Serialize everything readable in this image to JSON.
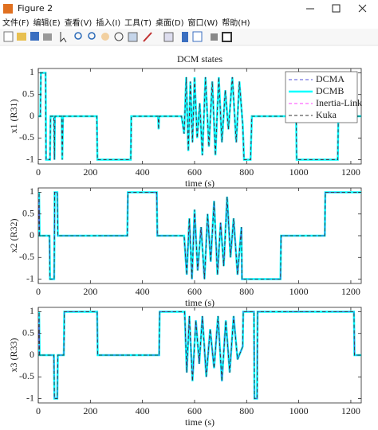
{
  "window": {
    "title": "Figure 2",
    "menu": [
      "文件(F)",
      "编辑(E)",
      "查看(V)",
      "插入(I)",
      "工具(T)",
      "桌面(D)",
      "窗口(W)",
      "帮助(H)"
    ]
  },
  "chart_data": [
    {
      "type": "line",
      "title": "DCM states",
      "xlabel": "time (s)",
      "ylabel": "x1 (R31)",
      "xlim": [
        0,
        1240
      ],
      "ylim": [
        -1.1,
        1.1
      ],
      "xticks": [
        0,
        200,
        400,
        600,
        800,
        1000,
        1200
      ],
      "yticks": [
        -1,
        -0.5,
        0,
        0.5,
        1
      ],
      "legend": "top-right",
      "x": [
        0,
        8,
        10,
        28,
        30,
        45,
        47,
        60,
        62,
        64,
        90,
        92,
        95,
        225,
        227,
        355,
        357,
        460,
        462,
        464,
        550,
        560,
        568,
        576,
        584,
        592,
        600,
        610,
        620,
        630,
        642,
        655,
        668,
        680,
        693,
        705,
        718,
        730,
        745,
        760,
        772,
        785,
        790,
        815,
        820,
        990,
        992,
        1150,
        1152,
        1240
      ],
      "series": [
        {
          "name": "DCMA",
          "color": "#5050d8",
          "values": [
            0,
            0,
            1,
            1,
            -1,
            -1,
            0,
            0,
            -1,
            0,
            0,
            -1,
            0,
            0,
            -1,
            -1,
            0,
            0,
            -0.3,
            0,
            0,
            -0.4,
            0.9,
            -0.8,
            0.8,
            -0.6,
            0.9,
            -0.5,
            0.3,
            -0.9,
            0.9,
            -0.7,
            0.8,
            -0.9,
            0.9,
            -0.6,
            0.6,
            -0.3,
            0.9,
            -0.6,
            0.8,
            -0.2,
            -1,
            -1,
            0,
            0,
            -1,
            -1,
            0,
            0
          ]
        },
        {
          "name": "DCMB",
          "color": "#00ffff",
          "values": [
            0,
            0,
            1,
            1,
            -1,
            -1,
            0,
            0,
            -1,
            0,
            0,
            -1,
            0,
            0,
            -1,
            -1,
            0,
            0,
            -0.3,
            0,
            0,
            -0.4,
            0.9,
            -0.8,
            0.8,
            -0.6,
            0.9,
            -0.5,
            0.3,
            -0.9,
            0.9,
            -0.7,
            0.8,
            -0.9,
            0.9,
            -0.6,
            0.6,
            -0.3,
            0.9,
            -0.6,
            0.8,
            -0.2,
            -1,
            -1,
            0,
            0,
            -1,
            -1,
            0,
            0
          ]
        },
        {
          "name": "Inertia-Link",
          "color": "#ff40ff",
          "values": [
            0,
            0,
            1,
            1,
            -1,
            -1,
            0,
            0,
            -1,
            0,
            0,
            -1,
            0,
            0,
            -1,
            -1,
            0,
            0,
            -0.3,
            0,
            0,
            -0.4,
            0.9,
            -0.8,
            0.8,
            -0.6,
            0.9,
            -0.5,
            0.3,
            -0.9,
            0.9,
            -0.7,
            0.8,
            -0.9,
            0.9,
            -0.6,
            0.6,
            -0.3,
            0.9,
            -0.6,
            0.8,
            -0.2,
            -1,
            -1,
            0,
            0,
            -1,
            -1,
            0,
            0
          ]
        },
        {
          "name": "Kuka",
          "color": "#333333",
          "values": [
            0,
            0,
            1,
            1,
            -1,
            -1,
            0,
            0,
            -1,
            0,
            0,
            -1,
            0,
            0,
            -1,
            -1,
            0,
            0,
            -0.3,
            0,
            0,
            -0.4,
            0.9,
            -0.8,
            0.8,
            -0.6,
            0.9,
            -0.5,
            0.3,
            -0.9,
            0.9,
            -0.7,
            0.8,
            -0.9,
            0.9,
            -0.6,
            0.6,
            -0.3,
            0.9,
            -0.6,
            0.8,
            -0.2,
            -1,
            -1,
            0,
            0,
            -1,
            -1,
            0,
            0
          ]
        }
      ]
    },
    {
      "type": "line",
      "xlabel": "time (s)",
      "ylabel": "x2 (R32)",
      "xlim": [
        0,
        1240
      ],
      "ylim": [
        -1.1,
        1.1
      ],
      "xticks": [
        0,
        200,
        400,
        600,
        800,
        1000,
        1200
      ],
      "yticks": [
        -1,
        -0.5,
        0,
        0.5,
        1
      ],
      "x": [
        0,
        3,
        5,
        43,
        45,
        61,
        63,
        73,
        75,
        342,
        344,
        455,
        457,
        560,
        570,
        580,
        590,
        600,
        612,
        625,
        638,
        650,
        662,
        675,
        688,
        700,
        712,
        725,
        738,
        750,
        765,
        780,
        782,
        930,
        932,
        1100,
        1102,
        1240
      ],
      "series": [
        {
          "color": "#00ffff",
          "values": [
            0,
            1,
            0,
            0,
            -1,
            -1,
            1,
            1,
            0,
            0,
            1,
            1,
            0,
            0,
            -0.9,
            0.4,
            -1,
            0.6,
            -0.8,
            0.2,
            -1,
            0.5,
            -0.6,
            0.8,
            -0.9,
            0.3,
            -0.7,
            0.9,
            -0.5,
            0.4,
            -0.9,
            0.2,
            -1,
            -1,
            0,
            0,
            1,
            1
          ]
        },
        {
          "color": "#ff40ff",
          "values": [
            0,
            1,
            0,
            0,
            -1,
            -1,
            1,
            1,
            0,
            0,
            1,
            1,
            0,
            0,
            -0.9,
            0.4,
            -1,
            0.6,
            -0.8,
            0.2,
            -1,
            0.5,
            -0.6,
            0.8,
            -0.9,
            0.3,
            -0.7,
            0.9,
            -0.5,
            0.4,
            -0.9,
            0.2,
            -1,
            -1,
            0,
            0,
            1,
            1
          ]
        },
        {
          "color": "#5050d8",
          "values": [
            0,
            1,
            0,
            0,
            -1,
            -1,
            1,
            1,
            0,
            0,
            1,
            1,
            0,
            0,
            -0.9,
            0.4,
            -1,
            0.6,
            -0.8,
            0.2,
            -1,
            0.5,
            -0.6,
            0.8,
            -0.9,
            0.3,
            -0.7,
            0.9,
            -0.5,
            0.4,
            -0.9,
            0.2,
            -1,
            -1,
            0,
            0,
            1,
            1
          ]
        },
        {
          "color": "#333333",
          "values": [
            0,
            1,
            0,
            0,
            -1,
            -1,
            1,
            1,
            0,
            0,
            1,
            1,
            0,
            0,
            -0.9,
            0.4,
            -1,
            0.6,
            -0.8,
            0.2,
            -1,
            0.5,
            -0.6,
            0.8,
            -0.9,
            0.3,
            -0.7,
            0.9,
            -0.5,
            0.4,
            -0.9,
            0.2,
            -1,
            -1,
            0,
            0,
            1,
            1
          ]
        }
      ]
    },
    {
      "type": "line",
      "xlabel": "time (s)",
      "ylabel": "x3 (R33)",
      "xlim": [
        0,
        1240
      ],
      "ylim": [
        -1.1,
        1.1
      ],
      "xticks": [
        0,
        200,
        400,
        600,
        800,
        1000,
        1200
      ],
      "yticks": [
        -1,
        -0.5,
        0,
        0.5,
        1
      ],
      "x": [
        0,
        3,
        5,
        60,
        62,
        73,
        75,
        98,
        100,
        226,
        228,
        464,
        466,
        562,
        570,
        580,
        592,
        605,
        618,
        630,
        645,
        660,
        675,
        690,
        705,
        720,
        735,
        750,
        765,
        785,
        787,
        828,
        830,
        840,
        842,
        1212,
        1214,
        1240
      ],
      "series": [
        {
          "color": "#00ffff",
          "values": [
            0,
            1,
            0,
            0,
            -1,
            -1,
            0,
            0,
            1,
            1,
            0,
            0,
            1,
            1,
            -0.4,
            0.9,
            -0.6,
            0.8,
            -0.2,
            0.9,
            -0.5,
            0.6,
            -0.3,
            0.9,
            -0.6,
            0.8,
            -0.4,
            0.9,
            -0.1,
            0.2,
            1,
            1,
            -1,
            -1,
            1,
            1,
            0,
            0
          ]
        },
        {
          "color": "#ff40ff",
          "values": [
            0,
            1,
            0,
            0,
            -1,
            -1,
            0,
            0,
            1,
            1,
            0,
            0,
            1,
            1,
            -0.4,
            0.9,
            -0.6,
            0.8,
            -0.2,
            0.9,
            -0.5,
            0.6,
            -0.3,
            0.9,
            -0.6,
            0.8,
            -0.4,
            0.9,
            -0.1,
            0.2,
            1,
            1,
            -1,
            -1,
            1,
            1,
            0,
            0
          ]
        },
        {
          "color": "#5050d8",
          "values": [
            0,
            1,
            0,
            0,
            -1,
            -1,
            0,
            0,
            1,
            1,
            0,
            0,
            1,
            1,
            -0.4,
            0.9,
            -0.6,
            0.8,
            -0.2,
            0.9,
            -0.5,
            0.6,
            -0.3,
            0.9,
            -0.6,
            0.8,
            -0.4,
            0.9,
            -0.1,
            0.2,
            1,
            1,
            -1,
            -1,
            1,
            1,
            0,
            0
          ]
        },
        {
          "color": "#333333",
          "values": [
            0,
            1,
            0,
            0,
            -1,
            -1,
            0,
            0,
            1,
            1,
            0,
            0,
            1,
            1,
            -0.4,
            0.9,
            -0.6,
            0.8,
            -0.2,
            0.9,
            -0.5,
            0.6,
            -0.3,
            0.9,
            -0.6,
            0.8,
            -0.4,
            0.9,
            -0.1,
            0.2,
            1,
            1,
            -1,
            -1,
            1,
            1,
            0,
            0
          ]
        }
      ]
    }
  ]
}
